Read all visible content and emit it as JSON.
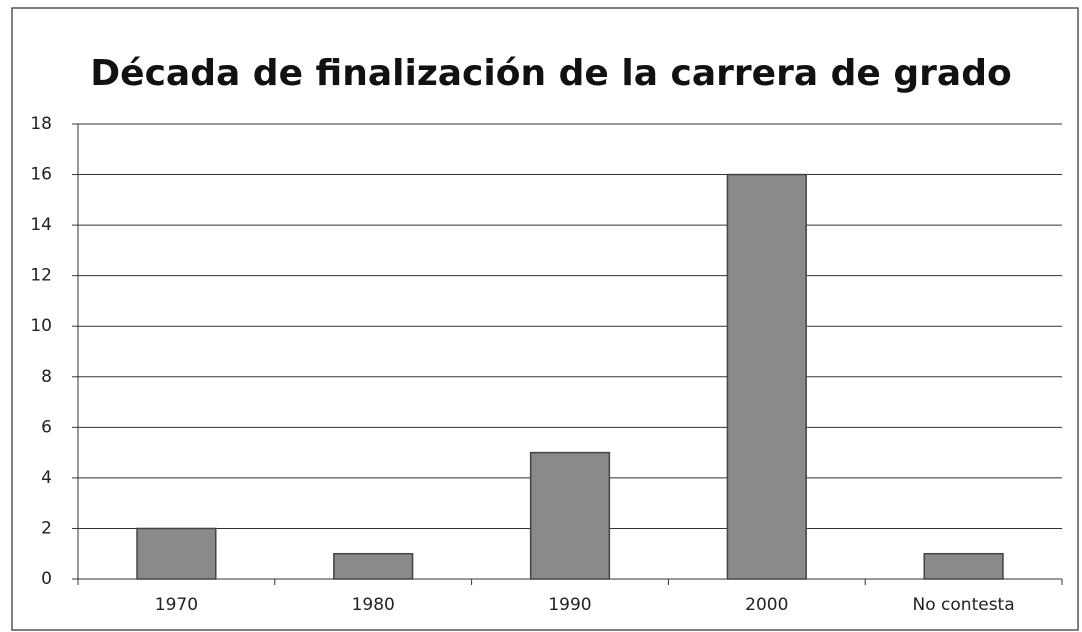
{
  "chart_data": {
    "type": "bar",
    "title": "Década de finalización de la carrera de grado",
    "categories": [
      "1970",
      "1980",
      "1990",
      "2000",
      "No contesta"
    ],
    "values": [
      2,
      1,
      5,
      16,
      1
    ],
    "color": "#8a8a8a",
    "ylim": [
      0,
      18
    ],
    "yticks": [
      0,
      2,
      4,
      6,
      8,
      10,
      12,
      14,
      16,
      18
    ],
    "grid": true
  }
}
